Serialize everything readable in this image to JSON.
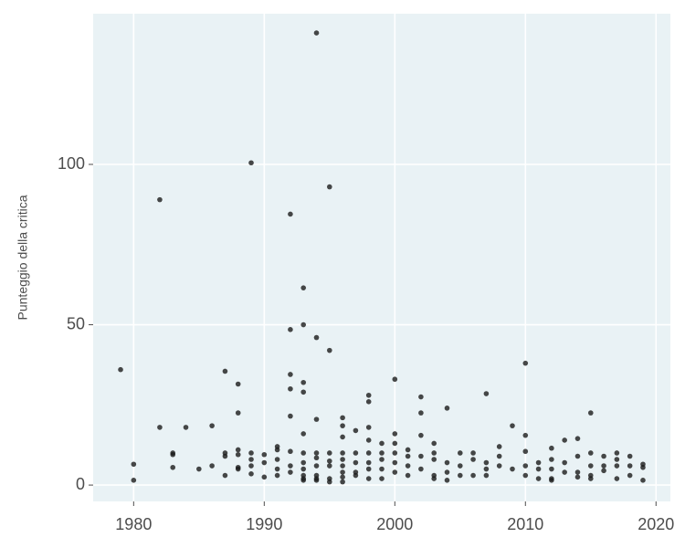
{
  "chart_data": {
    "type": "scatter",
    "y_label": "Punteggio della critica",
    "x": [
      1979,
      1980,
      1980,
      1982,
      1982,
      1983,
      1983,
      1983,
      1984,
      1985,
      1986,
      1986,
      1987,
      1987,
      1987,
      1987,
      1988,
      1988,
      1988,
      1988,
      1988,
      1988,
      1989,
      1989,
      1989,
      1989,
      1989,
      1990,
      1990,
      1990,
      1991,
      1991,
      1991,
      1991,
      1991,
      1992,
      1992,
      1992,
      1992,
      1992,
      1992,
      1992,
      1992,
      1993,
      1993,
      1993,
      1993,
      1993,
      1993,
      1993,
      1993,
      1993,
      1993,
      1993,
      1994,
      1994,
      1994,
      1994,
      1994,
      1994,
      1994,
      1994,
      1994,
      1995,
      1995,
      1995,
      1995,
      1995,
      1995,
      1995,
      1996,
      1996,
      1996,
      1996,
      1996,
      1996,
      1996,
      1996,
      1996,
      1997,
      1997,
      1997,
      1997,
      1997,
      1998,
      1998,
      1998,
      1998,
      1998,
      1998,
      1998,
      1998,
      1999,
      1999,
      1999,
      1999,
      1999,
      2000,
      2000,
      2000,
      2000,
      2000,
      2000,
      2001,
      2001,
      2001,
      2001,
      2002,
      2002,
      2002,
      2002,
      2002,
      2003,
      2003,
      2003,
      2003,
      2003,
      2004,
      2004,
      2004,
      2004,
      2005,
      2005,
      2005,
      2006,
      2006,
      2006,
      2007,
      2007,
      2007,
      2007,
      2008,
      2008,
      2008,
      2009,
      2009,
      2010,
      2010,
      2010,
      2010,
      2010,
      2011,
      2011,
      2011,
      2012,
      2012,
      2012,
      2012,
      2012,
      2013,
      2013,
      2013,
      2014,
      2014,
      2014,
      2014,
      2015,
      2015,
      2015,
      2015,
      2015,
      2016,
      2016,
      2016,
      2017,
      2017,
      2017,
      2017,
      2018,
      2018,
      2018,
      2019,
      2019,
      2019
    ],
    "values": [
      36,
      1.5,
      6.5,
      89,
      18,
      10,
      9.5,
      5.5,
      18,
      5,
      18.5,
      6,
      35.5,
      10,
      9,
      3,
      31.5,
      22.5,
      11,
      9.5,
      5.5,
      5,
      100.5,
      10,
      8,
      6,
      3.5,
      7,
      9.5,
      2.5,
      5,
      12,
      11,
      8,
      3,
      84.5,
      48.5,
      34.5,
      30,
      21.5,
      10.5,
      6,
      4,
      61.5,
      32,
      29,
      16,
      10,
      7,
      5,
      3,
      2,
      1.5,
      50,
      141,
      46,
      20.5,
      10,
      8.5,
      6,
      3,
      1.5,
      2,
      93,
      42,
      10,
      7.5,
      6,
      2,
      1,
      21,
      18.5,
      15,
      10,
      8,
      6,
      4,
      2.5,
      1,
      17,
      10,
      7,
      4,
      3,
      28,
      26,
      18,
      14,
      10,
      7,
      5,
      2,
      13,
      10,
      8,
      5,
      2,
      33,
      16,
      13,
      10,
      7,
      4,
      11,
      9,
      6,
      3,
      27.5,
      22.5,
      15.5,
      9,
      5,
      13,
      10,
      8,
      3,
      2,
      24,
      7,
      4,
      1.5,
      10,
      6,
      3,
      10,
      8,
      3,
      28.5,
      7,
      5,
      3,
      12,
      6,
      9,
      18.5,
      5,
      38,
      15.5,
      10.5,
      6,
      3,
      7,
      5,
      2,
      11.5,
      8,
      5,
      2,
      1.5,
      14,
      7,
      4,
      14.5,
      9,
      4,
      2.5,
      22.5,
      10,
      6,
      3,
      2,
      9,
      6,
      4.5,
      10,
      8,
      6,
      2,
      9,
      6,
      3,
      6.5,
      5.5,
      1.5
    ],
    "color": "#1a1a1a",
    "xlim": [
      1976.9,
      2021.1
    ],
    "ylim": [
      -5.1,
      147
    ],
    "xticks": [
      1980,
      1990,
      2000,
      2010,
      2020
    ],
    "yticks": [
      0,
      50,
      100
    ],
    "grid": true
  }
}
